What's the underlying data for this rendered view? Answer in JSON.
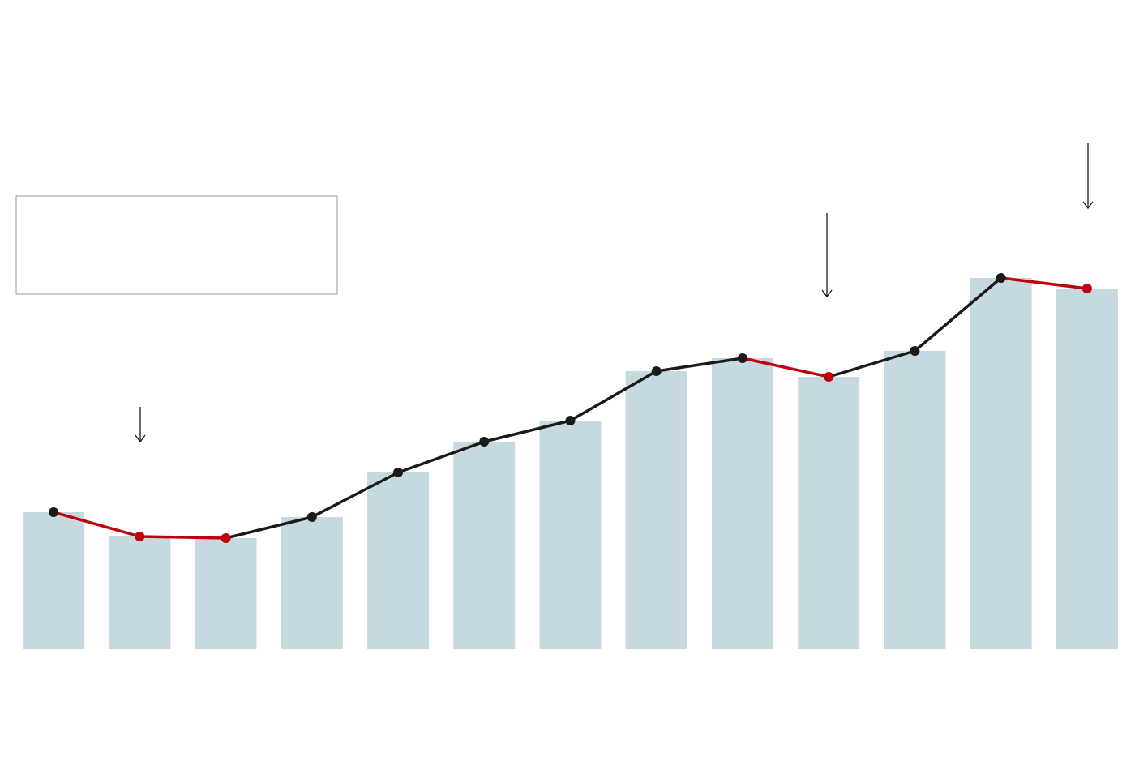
{
  "chart_data": {
    "type": "bar_line",
    "categories": [
      null,
      null,
      null,
      null,
      null,
      null,
      null,
      null,
      null,
      null,
      null,
      null,
      null
    ],
    "values": [
      169,
      139,
      137,
      163,
      218,
      256,
      282,
      343,
      359,
      336,
      368,
      458,
      445
    ],
    "color": "#c7d9e0",
    "line_color": "#1c1a18",
    "decrease_color": "#c0000b",
    "ylim": [
      0,
      801
    ]
  }
}
